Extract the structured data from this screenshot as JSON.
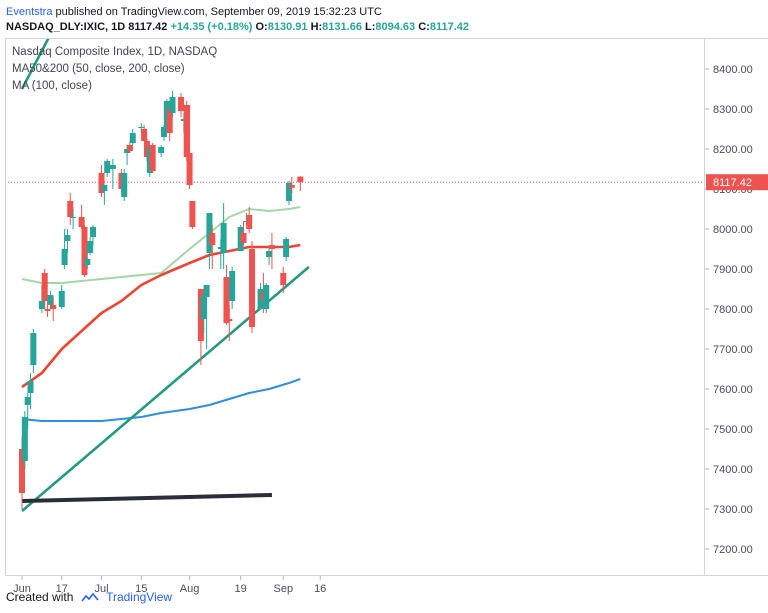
{
  "header": {
    "publisher": "Eventstra",
    "published_text": "published on TradingView.com, September 09, 2019 15:32:23 UTC",
    "symbol_line": "NASDAQ_DLY:IXIC, 1D",
    "last": "8117.42",
    "change": "+14.35 (+0.18%)",
    "o_label": "O:",
    "o_val": "8130.91",
    "h_label": "H:",
    "h_val": "8131.66",
    "l_label": "L:",
    "l_val": "8094.63",
    "c_label": "C:",
    "c_val": "8117.42"
  },
  "legend": {
    "title": "Nasdaq Composite Index, 1D, NASDAQ",
    "ma1": "MA50&200 (50, close, 200, close)",
    "ma2": "MA (100, close)"
  },
  "price_tag": "8117.42",
  "footer": {
    "created_with": "Created with",
    "brand": "TradingView"
  },
  "colors": {
    "up": "#26a69a",
    "down": "#ef5350",
    "ma50": "#ef4433",
    "ma100": "#2f8ede",
    "ma200": "#a5d6a7",
    "trend": "#239b80",
    "support": "#2a2e39"
  },
  "chart_data": {
    "type": "candlestick",
    "ylim": [
      7200,
      8450
    ],
    "y_ticks": [
      7200,
      7300,
      7400,
      7500,
      7600,
      7700,
      7800,
      7900,
      8000,
      8100,
      8200,
      8300,
      8400
    ],
    "x_ticks": [
      {
        "label": "Jun",
        "date": "2019-06-03"
      },
      {
        "label": "17",
        "date": "2019-06-17"
      },
      {
        "label": "Jul",
        "date": "2019-07-01"
      },
      {
        "label": "15",
        "date": "2019-07-15"
      },
      {
        "label": "Aug",
        "date": "2019-08-01"
      },
      {
        "label": "19",
        "date": "2019-08-19"
      },
      {
        "label": "Sep",
        "date": "2019-09-03"
      },
      {
        "label": "16",
        "date": "2019-09-16"
      }
    ],
    "candles": [
      {
        "date": "2019-06-03",
        "o": 7450,
        "h": 7480,
        "l": 7300,
        "c": 7340
      },
      {
        "date": "2019-06-04",
        "o": 7420,
        "h": 7545,
        "l": 7400,
        "c": 7530
      },
      {
        "date": "2019-06-05",
        "o": 7560,
        "h": 7590,
        "l": 7500,
        "c": 7580
      },
      {
        "date": "2019-06-06",
        "o": 7590,
        "h": 7640,
        "l": 7550,
        "c": 7620
      },
      {
        "date": "2019-06-07",
        "o": 7660,
        "h": 7750,
        "l": 7640,
        "c": 7740
      },
      {
        "date": "2019-06-10",
        "o": 7800,
        "h": 7860,
        "l": 7790,
        "c": 7820
      },
      {
        "date": "2019-06-11",
        "o": 7890,
        "h": 7900,
        "l": 7800,
        "c": 7820
      },
      {
        "date": "2019-06-12",
        "o": 7800,
        "h": 7825,
        "l": 7780,
        "c": 7795
      },
      {
        "date": "2019-06-13",
        "o": 7810,
        "h": 7845,
        "l": 7800,
        "c": 7835
      },
      {
        "date": "2019-06-14",
        "o": 7810,
        "h": 7830,
        "l": 7770,
        "c": 7800
      },
      {
        "date": "2019-06-17",
        "o": 7805,
        "h": 7860,
        "l": 7800,
        "c": 7845
      },
      {
        "date": "2019-06-18",
        "o": 7910,
        "h": 8000,
        "l": 7900,
        "c": 7950
      },
      {
        "date": "2019-06-19",
        "o": 7970,
        "h": 8000,
        "l": 7940,
        "c": 7985
      },
      {
        "date": "2019-06-20",
        "o": 8070,
        "h": 8090,
        "l": 8010,
        "c": 8030
      },
      {
        "date": "2019-06-21",
        "o": 8030,
        "h": 8050,
        "l": 8000,
        "c": 8030
      },
      {
        "date": "2019-06-24",
        "o": 8030,
        "h": 8060,
        "l": 8000,
        "c": 8005
      },
      {
        "date": "2019-06-25",
        "o": 8005,
        "h": 8010,
        "l": 7880,
        "c": 7885
      },
      {
        "date": "2019-06-26",
        "o": 7910,
        "h": 7955,
        "l": 7900,
        "c": 7925
      },
      {
        "date": "2019-06-27",
        "o": 7940,
        "h": 7980,
        "l": 7935,
        "c": 7970
      },
      {
        "date": "2019-06-28",
        "o": 7980,
        "h": 8010,
        "l": 7960,
        "c": 8005
      },
      {
        "date": "2019-07-01",
        "o": 8140,
        "h": 8160,
        "l": 8080,
        "c": 8090
      },
      {
        "date": "2019-07-02",
        "o": 8095,
        "h": 8110,
        "l": 8060,
        "c": 8110
      },
      {
        "date": "2019-07-03",
        "o": 8140,
        "h": 8175,
        "l": 8130,
        "c": 8170
      },
      {
        "date": "2019-07-05",
        "o": 8150,
        "h": 8175,
        "l": 8100,
        "c": 8160
      },
      {
        "date": "2019-07-08",
        "o": 8140,
        "h": 8150,
        "l": 8090,
        "c": 8100
      },
      {
        "date": "2019-07-09",
        "o": 8080,
        "h": 8150,
        "l": 8070,
        "c": 8140
      },
      {
        "date": "2019-07-10",
        "o": 8190,
        "h": 8210,
        "l": 8160,
        "c": 8200
      },
      {
        "date": "2019-07-11",
        "o": 8210,
        "h": 8220,
        "l": 8190,
        "c": 8195
      },
      {
        "date": "2019-07-12",
        "o": 8215,
        "h": 8250,
        "l": 8210,
        "c": 8240
      },
      {
        "date": "2019-07-15",
        "o": 8255,
        "h": 8265,
        "l": 8240,
        "c": 8255
      },
      {
        "date": "2019-07-16",
        "o": 8250,
        "h": 8260,
        "l": 8220,
        "c": 8220
      },
      {
        "date": "2019-07-17",
        "o": 8220,
        "h": 8225,
        "l": 8170,
        "c": 8180
      },
      {
        "date": "2019-07-18",
        "o": 8140,
        "h": 8210,
        "l": 8130,
        "c": 8205
      },
      {
        "date": "2019-07-19",
        "o": 8210,
        "h": 8215,
        "l": 8140,
        "c": 8145
      },
      {
        "date": "2019-07-22",
        "o": 8190,
        "h": 8210,
        "l": 8180,
        "c": 8205
      },
      {
        "date": "2019-07-23",
        "o": 8230,
        "h": 8260,
        "l": 8220,
        "c": 8255
      },
      {
        "date": "2019-07-24",
        "o": 8250,
        "h": 8325,
        "l": 8240,
        "c": 8320
      },
      {
        "date": "2019-07-25",
        "o": 8300,
        "h": 8310,
        "l": 8220,
        "c": 8240
      },
      {
        "date": "2019-07-26",
        "o": 8290,
        "h": 8345,
        "l": 8280,
        "c": 8330
      },
      {
        "date": "2019-07-29",
        "o": 8330,
        "h": 8340,
        "l": 8280,
        "c": 8295
      },
      {
        "date": "2019-07-30",
        "o": 8270,
        "h": 8290,
        "l": 8240,
        "c": 8275
      },
      {
        "date": "2019-07-31",
        "o": 8310,
        "h": 8320,
        "l": 8170,
        "c": 8180
      },
      {
        "date": "2019-08-01",
        "o": 8190,
        "h": 8310,
        "l": 8100,
        "c": 8110
      },
      {
        "date": "2019-08-02",
        "o": 8070,
        "h": 8070,
        "l": 8000,
        "c": 8005
      },
      {
        "date": "2019-08-05",
        "o": 7850,
        "h": 7850,
        "l": 7660,
        "c": 7720
      },
      {
        "date": "2019-08-06",
        "o": 7775,
        "h": 7840,
        "l": 7740,
        "c": 7835
      },
      {
        "date": "2019-08-07",
        "o": 7830,
        "h": 7860,
        "l": 7700,
        "c": 7860
      },
      {
        "date": "2019-08-08",
        "o": 7940,
        "h": 8040,
        "l": 7900,
        "c": 8040
      },
      {
        "date": "2019-08-09",
        "o": 7990,
        "h": 8010,
        "l": 7900,
        "c": 7960
      },
      {
        "date": "2019-08-12",
        "o": 7950,
        "h": 7975,
        "l": 7900,
        "c": 7955
      },
      {
        "date": "2019-08-13",
        "o": 7940,
        "h": 8065,
        "l": 7900,
        "c": 8015
      },
      {
        "date": "2019-08-14",
        "o": 7880,
        "h": 7910,
        "l": 7760,
        "c": 7765
      },
      {
        "date": "2019-08-15",
        "o": 7775,
        "h": 7810,
        "l": 7720,
        "c": 7770
      },
      {
        "date": "2019-08-16",
        "o": 7820,
        "h": 7905,
        "l": 7800,
        "c": 7895
      },
      {
        "date": "2019-08-19",
        "o": 7945,
        "h": 8010,
        "l": 7945,
        "c": 8005
      },
      {
        "date": "2019-08-20",
        "o": 7990,
        "h": 8020,
        "l": 7960,
        "c": 7965
      },
      {
        "date": "2019-08-21",
        "o": 8020,
        "h": 8040,
        "l": 8010,
        "c": 8020
      },
      {
        "date": "2019-08-22",
        "o": 8035,
        "h": 8055,
        "l": 7990,
        "c": 8000
      },
      {
        "date": "2019-08-23",
        "o": 7950,
        "h": 7970,
        "l": 7740,
        "c": 7755
      },
      {
        "date": "2019-08-26",
        "o": 7800,
        "h": 7865,
        "l": 7800,
        "c": 7850
      },
      {
        "date": "2019-08-27",
        "o": 7840,
        "h": 7890,
        "l": 7790,
        "c": 7825
      },
      {
        "date": "2019-08-28",
        "o": 7800,
        "h": 7865,
        "l": 7790,
        "c": 7860
      },
      {
        "date": "2019-08-29",
        "o": 7930,
        "h": 7960,
        "l": 7910,
        "c": 7945
      },
      {
        "date": "2019-08-30",
        "o": 7960,
        "h": 7990,
        "l": 7900,
        "c": 7950
      },
      {
        "date": "2019-09-03",
        "o": 7890,
        "h": 7905,
        "l": 7840,
        "c": 7860
      },
      {
        "date": "2019-09-04",
        "o": 7930,
        "h": 7980,
        "l": 7920,
        "c": 7975
      },
      {
        "date": "2019-09-05",
        "o": 8070,
        "h": 8120,
        "l": 8060,
        "c": 8115
      },
      {
        "date": "2019-09-06",
        "o": 8110,
        "h": 8130,
        "l": 8090,
        "c": 8103
      },
      {
        "date": "2019-09-09",
        "o": 8131,
        "h": 8132,
        "l": 8095,
        "c": 8117
      }
    ],
    "ma50": [
      [
        "2019-06-03",
        7605
      ],
      [
        "2019-06-10",
        7640
      ],
      [
        "2019-06-17",
        7700
      ],
      [
        "2019-06-24",
        7745
      ],
      [
        "2019-07-01",
        7790
      ],
      [
        "2019-07-08",
        7820
      ],
      [
        "2019-07-15",
        7860
      ],
      [
        "2019-07-22",
        7885
      ],
      [
        "2019-08-01",
        7915
      ],
      [
        "2019-08-08",
        7935
      ],
      [
        "2019-08-15",
        7945
      ],
      [
        "2019-08-22",
        7955
      ],
      [
        "2019-08-29",
        7955
      ],
      [
        "2019-09-05",
        7955
      ],
      [
        "2019-09-09",
        7960
      ]
    ],
    "ma100": [
      [
        "2019-06-03",
        7525
      ],
      [
        "2019-06-10",
        7520
      ],
      [
        "2019-06-17",
        7520
      ],
      [
        "2019-06-24",
        7520
      ],
      [
        "2019-07-01",
        7520
      ],
      [
        "2019-07-08",
        7525
      ],
      [
        "2019-07-15",
        7530
      ],
      [
        "2019-07-22",
        7540
      ],
      [
        "2019-08-01",
        7550
      ],
      [
        "2019-08-08",
        7560
      ],
      [
        "2019-08-15",
        7575
      ],
      [
        "2019-08-22",
        7590
      ],
      [
        "2019-08-29",
        7600
      ],
      [
        "2019-09-05",
        7615
      ],
      [
        "2019-09-09",
        7625
      ]
    ],
    "ma200": [
      [
        "2019-06-03",
        7875
      ],
      [
        "2019-06-10",
        7865
      ],
      [
        "2019-06-17",
        7865
      ],
      [
        "2019-06-24",
        7870
      ],
      [
        "2019-07-01",
        7875
      ],
      [
        "2019-07-08",
        7880
      ],
      [
        "2019-07-15",
        7885
      ],
      [
        "2019-07-22",
        7890
      ],
      [
        "2019-08-01",
        7950
      ],
      [
        "2019-08-08",
        7990
      ],
      [
        "2019-08-15",
        8030
      ],
      [
        "2019-08-22",
        8050
      ],
      [
        "2019-08-29",
        8045
      ],
      [
        "2019-09-05",
        8050
      ],
      [
        "2019-09-09",
        8055
      ]
    ],
    "trend_lines": [
      {
        "name": "support-trendline",
        "color": "#239b80",
        "from": [
          "2019-06-03",
          7295
        ],
        "to": [
          "2019-09-12",
          7905
        ]
      },
      {
        "name": "upper-trendline",
        "color": "#239b80",
        "from": [
          "2019-06-03",
          8350
        ],
        "to": [
          "2019-06-14",
          8500
        ]
      },
      {
        "name": "horizontal-support-line",
        "color": "#2a2e39",
        "from": [
          "2019-06-03",
          7320
        ],
        "to": [
          "2019-08-30",
          7335
        ]
      }
    ]
  }
}
